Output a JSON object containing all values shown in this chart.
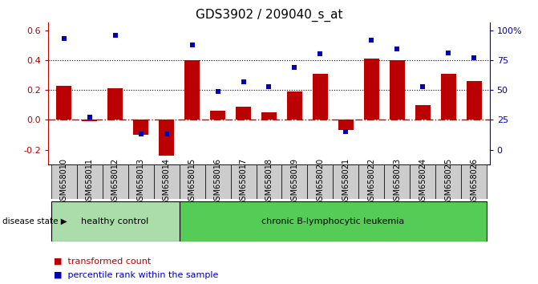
{
  "title": "GDS3902 / 209040_s_at",
  "samples": [
    "GSM658010",
    "GSM658011",
    "GSM658012",
    "GSM658013",
    "GSM658014",
    "GSM658015",
    "GSM658016",
    "GSM658017",
    "GSM658018",
    "GSM658019",
    "GSM658020",
    "GSM658021",
    "GSM658022",
    "GSM658023",
    "GSM658024",
    "GSM658025",
    "GSM658026"
  ],
  "transformed_count": [
    0.23,
    -0.01,
    0.21,
    -0.1,
    -0.24,
    0.4,
    0.06,
    0.09,
    0.05,
    0.19,
    0.31,
    -0.07,
    0.41,
    0.4,
    0.1,
    0.31,
    0.26
  ],
  "percentile_rank_pct": [
    93,
    27,
    96,
    13,
    13,
    88,
    49,
    57,
    53,
    69,
    80,
    15,
    92,
    84,
    53,
    81,
    77
  ],
  "ylim": [
    -0.3,
    0.65
  ],
  "right_ylim": [
    -14,
    117
  ],
  "left_yticks": [
    -0.2,
    0.0,
    0.2,
    0.4,
    0.6
  ],
  "right_yticks": [
    0,
    25,
    50,
    75,
    100
  ],
  "right_yticklabels": [
    "0",
    "25",
    "50",
    "75",
    "100%"
  ],
  "bar_color": "#bb0000",
  "dot_color": "#0000bb",
  "hline0_color": "#cc0000",
  "dotline_color": "#000000",
  "group1_label": "healthy control",
  "group2_label": "chronic B-lymphocytic leukemia",
  "group1_count": 5,
  "group2_count": 12,
  "disease_state_label": "disease state",
  "legend1": "transformed count",
  "legend2": "percentile rank within the sample",
  "group1_color": "#aaddaa",
  "group2_color": "#55cc55",
  "bg_color": "#ffffff",
  "xlabel_box_color": "#cccccc",
  "tick_label_fontsize": 7,
  "title_fontsize": 11
}
